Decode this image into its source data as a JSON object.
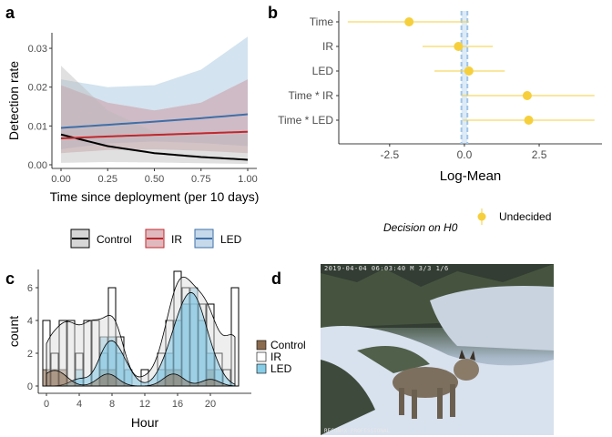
{
  "panels": {
    "a": "a",
    "b": "b",
    "c": "c",
    "d": "d"
  },
  "colors": {
    "control": "#000000",
    "ir": "#c0282d",
    "led": "#3f6fa8",
    "control_fill": "#bbbbbb",
    "ir_fill": "#c98a93",
    "led_fill": "#9ec0dc",
    "estimate": "#f6cf3c",
    "ref_line": "#9fc5e8"
  },
  "photo": {
    "stamp_top": "2019-04-04 06:03:40  M 3/3            1/6",
    "stamp_bottom": "RECONYX PROFESSIONAL"
  },
  "chart_data": [
    {
      "type": "line",
      "panel": "a",
      "xlabel": "Time since deployment (per 10 days)",
      "ylabel": "Detection rate",
      "xlim": [
        0,
        1
      ],
      "ylim": [
        0,
        0.034
      ],
      "x_ticks": [
        "0.00",
        "0.25",
        "0.50",
        "0.75",
        "1.00"
      ],
      "y_ticks": [
        "0.00",
        "0.01",
        "0.02",
        "0.03"
      ],
      "x": [
        0,
        0.25,
        0.5,
        0.75,
        1
      ],
      "series": [
        {
          "name": "Control",
          "values": [
            0.0078,
            0.0048,
            0.003,
            0.002,
            0.0013
          ],
          "lower": [
            0.0005,
            0.0007,
            0.0006,
            0.0004,
            0.0002
          ],
          "upper": [
            0.0255,
            0.014,
            0.0085,
            0.0075,
            0.008
          ]
        },
        {
          "name": "IR",
          "values": [
            0.0068,
            0.0073,
            0.0077,
            0.0081,
            0.0085
          ],
          "lower": [
            0.003,
            0.0038,
            0.004,
            0.0036,
            0.003
          ],
          "upper": [
            0.0205,
            0.016,
            0.014,
            0.016,
            0.022
          ]
        },
        {
          "name": "LED",
          "values": [
            0.0095,
            0.0103,
            0.0111,
            0.012,
            0.013
          ],
          "lower": [
            0.004,
            0.0055,
            0.006,
            0.0056,
            0.0048
          ],
          "upper": [
            0.022,
            0.02,
            0.0205,
            0.0245,
            0.033
          ]
        }
      ],
      "legend": [
        "Control",
        "IR",
        "LED"
      ]
    },
    {
      "type": "scatter",
      "panel": "b",
      "xlabel": "Log-Mean",
      "xlim": [
        -4.2,
        4.6
      ],
      "x_ticks": [
        -2.5,
        0.0,
        2.5
      ],
      "x_tick_labels": [
        "-2.5",
        "0.0",
        "2.5"
      ],
      "categories": [
        "Time",
        "IR",
        "LED",
        "Time * IR",
        "Time * LED"
      ],
      "estimates": [
        -1.85,
        -0.2,
        0.15,
        2.1,
        2.15
      ],
      "lower": [
        -3.9,
        -1.4,
        -1.0,
        -0.1,
        -0.05
      ],
      "upper": [
        0.15,
        0.95,
        1.35,
        4.35,
        4.35
      ],
      "reference_band": [
        -0.1,
        0.1
      ],
      "legend_title": "Decision on H0",
      "legend": [
        "Undecided"
      ]
    },
    {
      "type": "bar",
      "panel": "c",
      "xlabel": "Hour",
      "ylabel": "count",
      "xlim": [
        0,
        24
      ],
      "ylim": [
        0,
        7
      ],
      "x_ticks": [
        "0",
        "4",
        "8",
        "12",
        "16",
        "20"
      ],
      "y_ticks": [
        "0",
        "2",
        "4",
        "6"
      ],
      "hours": [
        0,
        1,
        2,
        3,
        4,
        5,
        6,
        7,
        8,
        9,
        10,
        11,
        12,
        13,
        14,
        15,
        16,
        17,
        18,
        19,
        20,
        21,
        22,
        23
      ],
      "series": [
        {
          "name": "Control",
          "values": [
            1,
            1,
            1,
            0,
            0,
            0,
            0,
            1,
            1,
            0,
            0,
            0,
            0,
            0,
            0,
            1,
            1,
            0,
            0,
            0,
            1,
            0,
            0,
            0
          ]
        },
        {
          "name": "IR",
          "values": [
            4,
            2,
            4,
            4,
            2,
            4,
            4,
            2,
            6,
            3,
            0,
            0,
            1,
            0,
            2,
            4,
            7,
            6,
            5,
            5,
            5,
            2,
            1,
            6
          ]
        },
        {
          "name": "LED",
          "values": [
            0,
            0,
            0,
            0,
            1,
            0,
            0,
            3,
            3,
            2,
            1,
            0,
            0,
            0,
            1,
            2,
            4,
            5,
            6,
            4,
            2,
            1,
            0,
            0
          ]
        }
      ],
      "legend": [
        "Control",
        "IR",
        "LED"
      ]
    }
  ]
}
